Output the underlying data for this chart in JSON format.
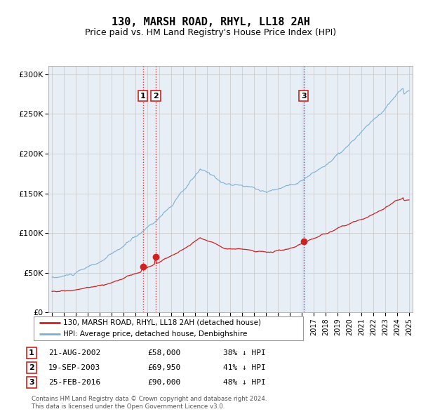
{
  "title": "130, MARSH ROAD, RHYL, LL18 2AH",
  "subtitle": "Price paid vs. HM Land Registry's House Price Index (HPI)",
  "title_fontsize": 11,
  "subtitle_fontsize": 9,
  "hpi_color": "#7ab0d4",
  "price_color": "#cc2222",
  "ylabel_ticks": [
    "£0",
    "£50K",
    "£100K",
    "£150K",
    "£200K",
    "£250K",
    "£300K"
  ],
  "ytick_values": [
    0,
    50000,
    100000,
    150000,
    200000,
    250000,
    300000
  ],
  "ylim": [
    0,
    310000
  ],
  "xlim_start": 1994.7,
  "xlim_end": 2025.3,
  "grid_color": "#cccccc",
  "bg_color": "#e8eef5",
  "transactions": [
    {
      "num": 1,
      "date": "21-AUG-2002",
      "price": 58000,
      "pct": "38%",
      "direction": "↓",
      "x_year": 2002.64
    },
    {
      "num": 2,
      "date": "19-SEP-2003",
      "price": 69950,
      "pct": "41%",
      "direction": "↓",
      "x_year": 2003.72
    },
    {
      "num": 3,
      "date": "25-FEB-2016",
      "price": 90000,
      "pct": "48%",
      "direction": "↓",
      "x_year": 2016.15
    }
  ],
  "legend_label_red": "130, MARSH ROAD, RHYL, LL18 2AH (detached house)",
  "legend_label_blue": "HPI: Average price, detached house, Denbighshire",
  "footer1": "Contains HM Land Registry data © Crown copyright and database right 2024.",
  "footer2": "This data is licensed under the Open Government Licence v3.0."
}
